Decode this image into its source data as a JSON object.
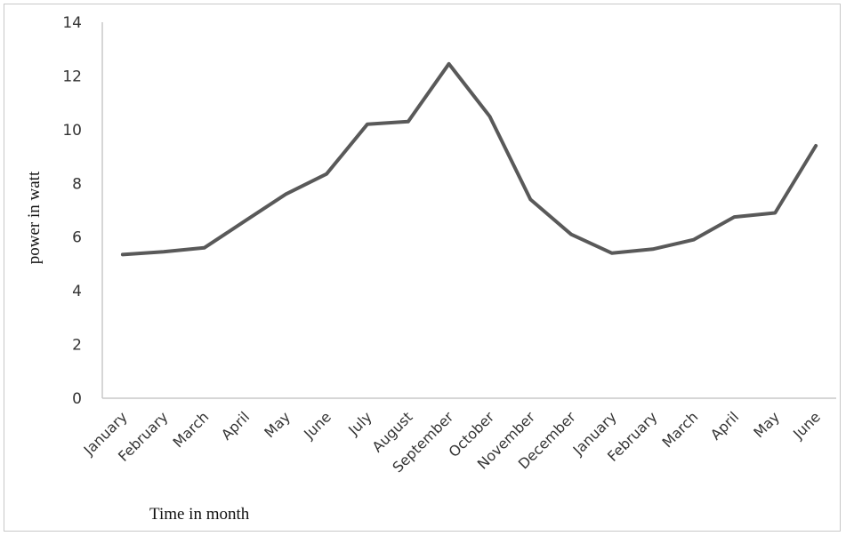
{
  "chart_data": {
    "type": "line",
    "title": "",
    "xlabel": "Time in month",
    "ylabel": "power in watt",
    "categories": [
      "January",
      "February",
      "March",
      "April",
      "May",
      "June",
      "July",
      "August",
      "September",
      "October",
      "November",
      "December",
      "January",
      "February",
      "March",
      "April",
      "May",
      "June"
    ],
    "series": [
      {
        "values": [
          5.35,
          5.45,
          5.6,
          6.6,
          7.6,
          8.35,
          10.2,
          10.3,
          12.45,
          10.5,
          7.4,
          6.1,
          5.4,
          5.55,
          5.9,
          6.75,
          6.9,
          9.4
        ]
      }
    ],
    "yticks": [
      "0",
      "2",
      "4",
      "6",
      "8",
      "10",
      "12",
      "14"
    ],
    "ylim": [
      0,
      14
    ],
    "grid": false,
    "legend": "none",
    "line_color": "#595959"
  }
}
